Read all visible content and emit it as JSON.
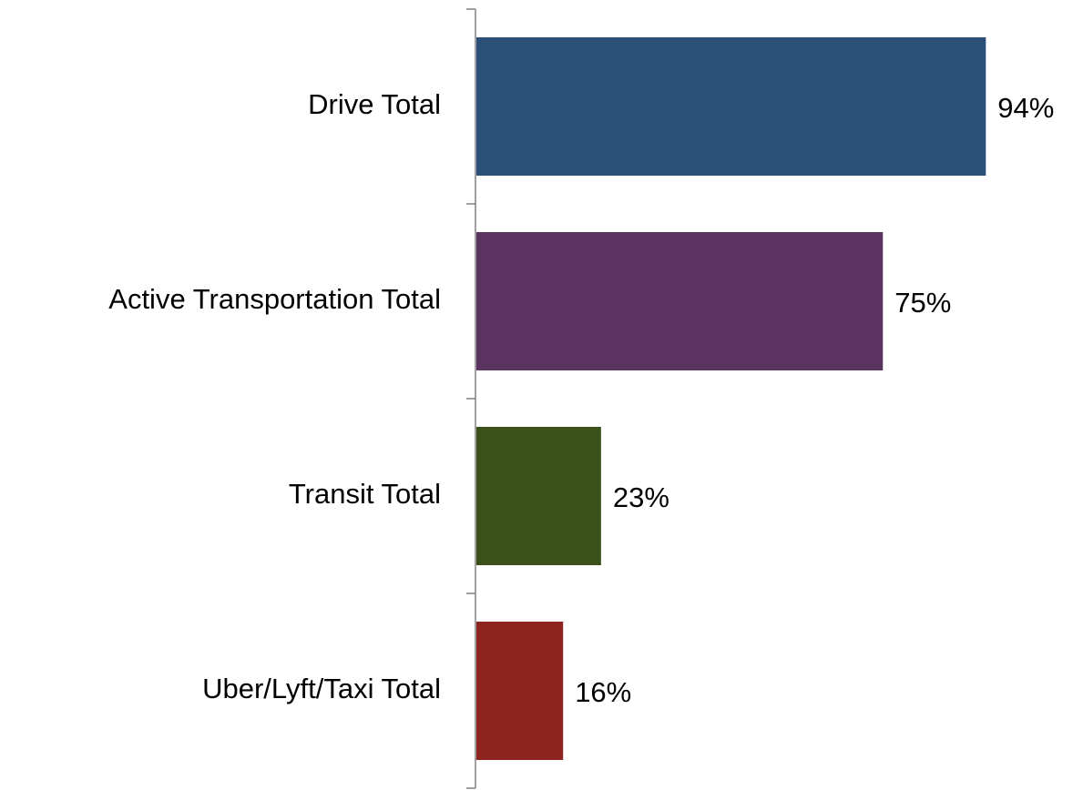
{
  "chart_data": {
    "type": "hbar",
    "categories": [
      "Drive Total",
      "Active Transportation Total",
      "Transit Total",
      "Uber/Lyft/Taxi Total"
    ],
    "values": [
      94,
      75,
      23,
      16
    ],
    "value_labels": [
      "94%",
      "75%",
      "23%",
      "16%"
    ],
    "colors": [
      "#2a5078",
      "#5a3360",
      "#3a5219",
      "#8e2420"
    ]
  }
}
